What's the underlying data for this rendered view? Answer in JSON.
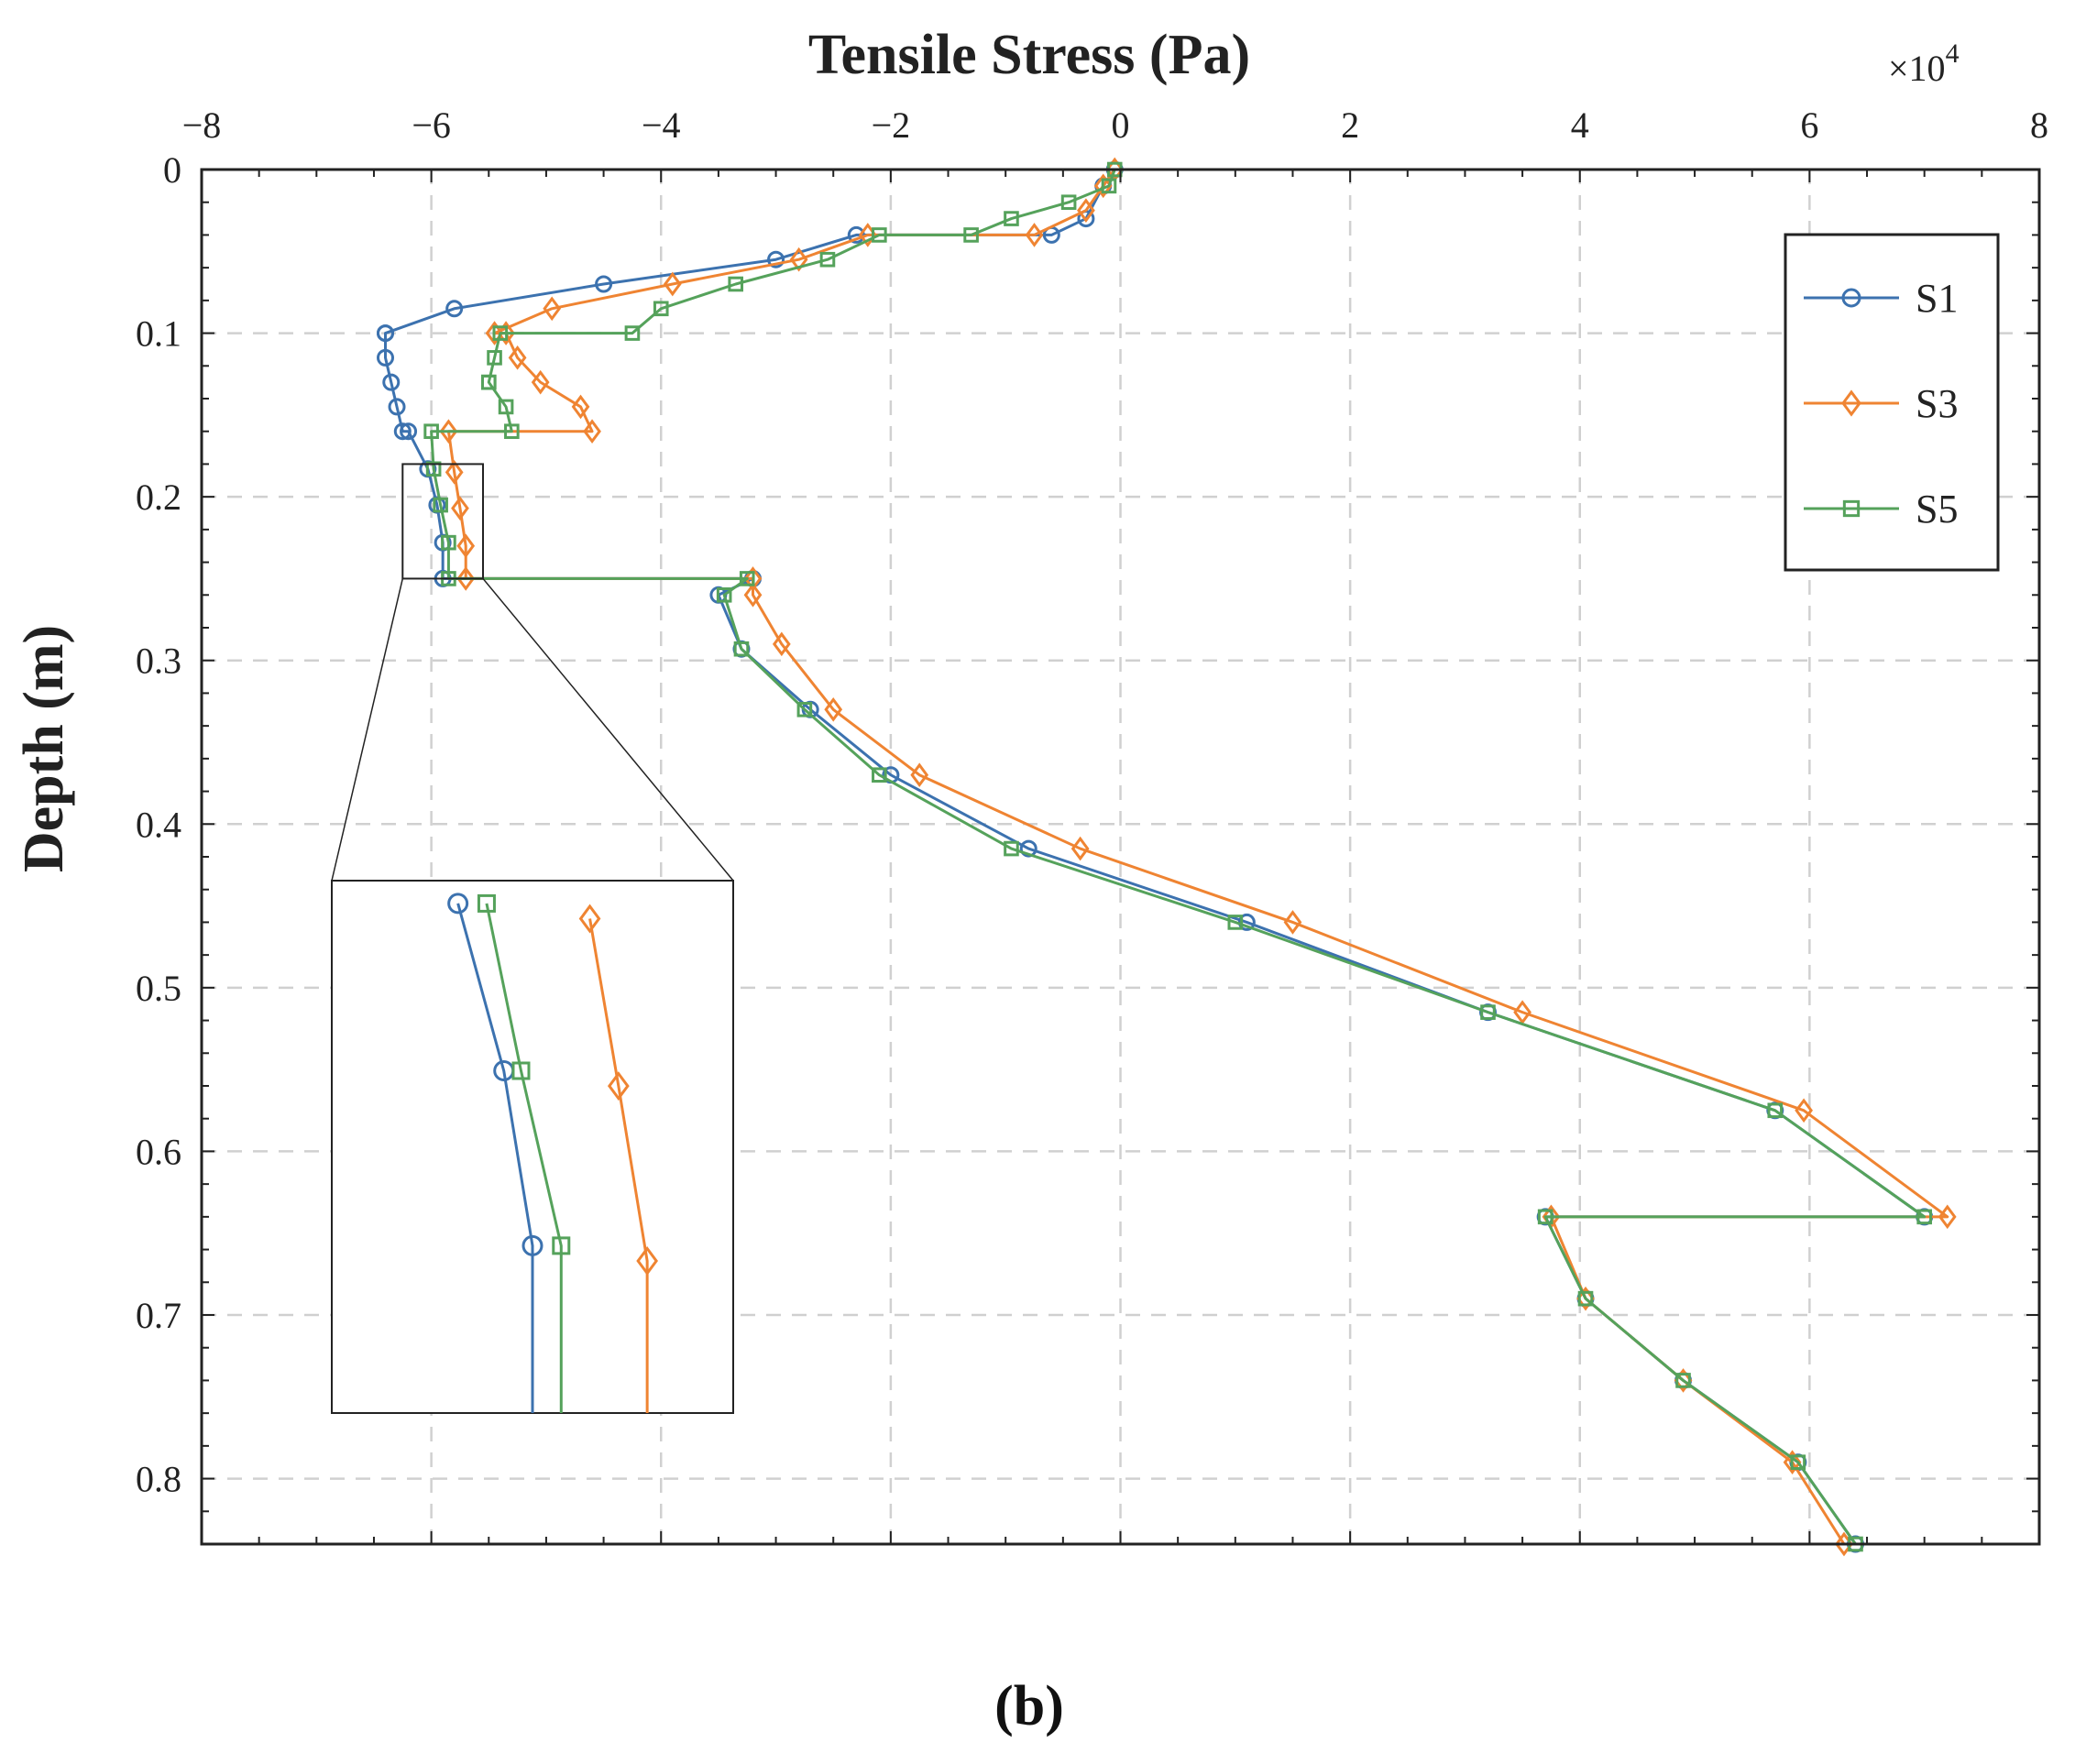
{
  "chart_data": {
    "type": "line",
    "title": "Tensile Stress (Pa)",
    "xlabel": "Tensile Stress (Pa)",
    "ylabel": "Depth (m)",
    "x_multiplier": "×10",
    "x_multiplier_exp": "4",
    "xlim": [
      -8,
      8
    ],
    "ylim": [
      0,
      0.84
    ],
    "x_ticks": [
      -8,
      -6,
      -4,
      -2,
      0,
      2,
      4,
      6,
      8
    ],
    "x_tick_labels": [
      "−8",
      "−6",
      "−4",
      "−2",
      "0",
      "2",
      "4",
      "6",
      "8"
    ],
    "y_ticks": [
      0,
      0.1,
      0.2,
      0.3,
      0.4,
      0.5,
      0.6,
      0.7,
      0.8
    ],
    "y_tick_labels": [
      "0",
      "0.1",
      "0.2",
      "0.3",
      "0.4",
      "0.5",
      "0.6",
      "0.7",
      "0.8"
    ],
    "grid": true,
    "legend_position": "top-right",
    "caption": "(b)",
    "inset": {
      "x_range": [
        -6.25,
        -5.55
      ],
      "y_range": [
        0.18,
        0.25
      ]
    },
    "series": [
      {
        "name": "S1",
        "color": "#3c72af",
        "marker": "circle",
        "x": [
          -0.05,
          -0.15,
          -0.3,
          -0.6,
          -2.3,
          -3.0,
          -4.5,
          -5.8,
          -6.4,
          -6.4,
          -6.4,
          -6.35,
          -6.3,
          -6.25,
          -6.2,
          -6.03,
          -5.95,
          -5.9,
          -5.9,
          -3.2,
          -3.5,
          -3.3,
          -2.7,
          -2.0,
          -0.8,
          1.1,
          3.2,
          5.7,
          7.0,
          3.7,
          4.05,
          4.9,
          5.9,
          6.4
        ],
        "y": [
          0.0,
          0.01,
          0.03,
          0.04,
          0.04,
          0.055,
          0.07,
          0.085,
          0.1,
          0.1,
          0.115,
          0.13,
          0.145,
          0.16,
          0.16,
          0.183,
          0.205,
          0.228,
          0.25,
          0.25,
          0.26,
          0.293,
          0.33,
          0.37,
          0.415,
          0.46,
          0.515,
          0.575,
          0.64,
          0.64,
          0.69,
          0.74,
          0.79,
          0.84
        ]
      },
      {
        "name": "S3",
        "color": "#ef8432",
        "marker": "diamond",
        "x": [
          -0.05,
          -0.15,
          -0.3,
          -0.75,
          -2.2,
          -2.8,
          -3.9,
          -4.95,
          -5.45,
          -5.35,
          -5.25,
          -5.05,
          -4.7,
          -4.6,
          -5.85,
          -5.8,
          -5.75,
          -5.7,
          -5.7,
          -3.2,
          -3.2,
          -2.95,
          -2.5,
          -1.75,
          -0.35,
          1.5,
          3.5,
          5.95,
          7.2,
          3.75,
          4.05,
          4.9,
          5.85,
          6.3
        ],
        "y": [
          0.0,
          0.01,
          0.025,
          0.04,
          0.04,
          0.055,
          0.07,
          0.085,
          0.1,
          0.1,
          0.115,
          0.13,
          0.145,
          0.16,
          0.16,
          0.185,
          0.207,
          0.23,
          0.25,
          0.25,
          0.26,
          0.29,
          0.33,
          0.37,
          0.415,
          0.46,
          0.515,
          0.575,
          0.64,
          0.64,
          0.69,
          0.74,
          0.79,
          0.84
        ]
      },
      {
        "name": "S5",
        "color": "#55a25b",
        "marker": "square",
        "x": [
          -0.05,
          -0.1,
          -0.45,
          -0.95,
          -1.3,
          -2.1,
          -2.55,
          -3.35,
          -4.0,
          -4.25,
          -5.4,
          -5.45,
          -5.5,
          -5.5,
          -5.35,
          -5.3,
          -6.0,
          -5.98,
          -5.92,
          -5.85,
          -5.85,
          -3.25,
          -3.45,
          -3.3,
          -2.75,
          -2.1,
          -0.95,
          1.0,
          3.2,
          5.7,
          7.0,
          3.7,
          4.05,
          4.9,
          5.9,
          6.4
        ],
        "y": [
          0.0,
          0.01,
          0.02,
          0.03,
          0.04,
          0.04,
          0.055,
          0.07,
          0.085,
          0.1,
          0.1,
          0.115,
          0.13,
          0.13,
          0.145,
          0.16,
          0.16,
          0.183,
          0.205,
          0.228,
          0.25,
          0.25,
          0.26,
          0.293,
          0.33,
          0.37,
          0.415,
          0.46,
          0.515,
          0.575,
          0.64,
          0.64,
          0.69,
          0.74,
          0.79,
          0.84
        ]
      }
    ]
  }
}
